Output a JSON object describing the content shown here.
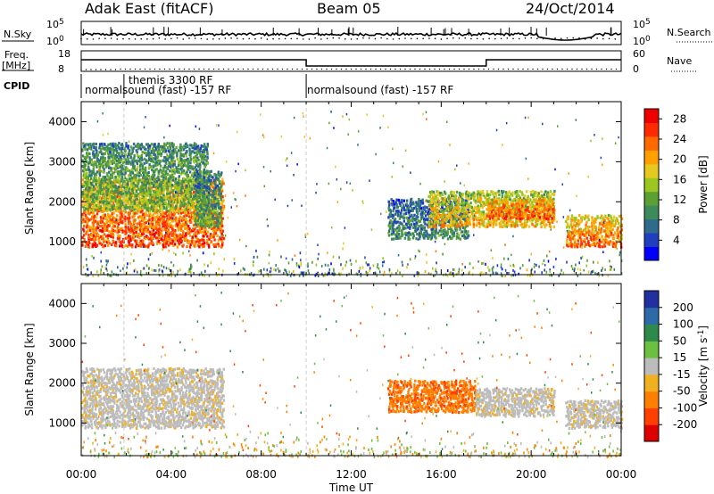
{
  "header": {
    "station": "Adak East (fitACF)",
    "beam": "Beam 05",
    "date": "24/Oct/2014"
  },
  "top_panels": {
    "nsky_label": "N.Sky",
    "nsearch_label": "N.Search",
    "nsky_ticks": [
      "10^5",
      "10^0"
    ],
    "nsearch_ticks": [
      "10^5",
      "10^0"
    ],
    "freq_label": "Freq.",
    "freq_unit": "[MHz]",
    "freq_ticks": [
      "18",
      "8"
    ],
    "nave_label": "Nave",
    "nave_ticks": [
      "60",
      "0"
    ],
    "cpid_label": "CPID",
    "cpid_segments": [
      {
        "label": "normalsound (fast) -157 RF"
      },
      {
        "label": "themis 3300 RF"
      },
      {
        "label": "normalsound (fast) -157 RF"
      }
    ]
  },
  "chart_data": [
    {
      "type": "heatmap",
      "title": "",
      "ylabel": "Slant Range [km]",
      "xlabel": "Time UT",
      "ylim": [
        180,
        4500
      ],
      "yticks": [
        "1000",
        "2000",
        "3000",
        "4000"
      ],
      "xticks": [
        "00:00",
        "04:00",
        "08:00",
        "12:00",
        "16:00",
        "20:00",
        "00:00"
      ],
      "colorbar": {
        "label": "Power [dB]",
        "ticks": [
          "28",
          "24",
          "20",
          "16",
          "12",
          "8",
          "4"
        ],
        "range": [
          0,
          30
        ],
        "colors": [
          "#0000ff",
          "#1f3fbf",
          "#2e6b8c",
          "#3d8a5a",
          "#5aa032",
          "#9cc620",
          "#e6c820",
          "#ffa000",
          "#ff6a00",
          "#ff2a00",
          "#ee0000"
        ]
      },
      "echo_regions": [
        {
          "t0": 0.0,
          "t1": 6.3,
          "r0": 900,
          "r1": 2600,
          "power_db": 26
        },
        {
          "t0": 0.0,
          "t1": 5.6,
          "r0": 1800,
          "r1": 3500,
          "power_db": 14
        },
        {
          "t0": 5.0,
          "t1": 6.2,
          "r0": 1400,
          "r1": 2800,
          "power_db": 12
        },
        {
          "t0": 13.6,
          "t1": 17.2,
          "r0": 1100,
          "r1": 2100,
          "power_db": 10
        },
        {
          "t0": 15.4,
          "t1": 21.0,
          "r0": 1400,
          "r1": 2300,
          "power_db": 20
        },
        {
          "t0": 18.0,
          "t1": 21.0,
          "r0": 1600,
          "r1": 2100,
          "power_db": 26
        },
        {
          "t0": 21.5,
          "t1": 24.0,
          "r0": 900,
          "r1": 1700,
          "power_db": 24
        }
      ]
    },
    {
      "type": "heatmap",
      "title": "",
      "ylabel": "Slant Range [km]",
      "xlabel": "Time UT",
      "ylim": [
        180,
        4500
      ],
      "yticks": [
        "1000",
        "2000",
        "3000",
        "4000"
      ],
      "xticks": [
        "00:00",
        "04:00",
        "08:00",
        "12:00",
        "16:00",
        "20:00",
        "00:00"
      ],
      "colorbar": {
        "label": "Velocity [m s^-1]",
        "ticks": [
          "200",
          "100",
          "50",
          "15",
          "-15",
          "-50",
          "-100",
          "-200"
        ],
        "colors": [
          "#2030a0",
          "#2c6aa8",
          "#2e8a4a",
          "#6cc040",
          "#bcbcbc",
          "#f0b020",
          "#ff8000",
          "#ff4000",
          "#dd0000"
        ]
      },
      "echo_regions": [
        {
          "t0": 0.0,
          "t1": 6.3,
          "r0": 900,
          "r1": 2400,
          "velocity_ms": 0
        },
        {
          "t0": 13.6,
          "t1": 17.5,
          "r0": 1300,
          "r1": 2100,
          "velocity_ms": -60
        },
        {
          "t0": 17.5,
          "t1": 21.0,
          "r0": 1200,
          "r1": 1900,
          "velocity_ms": 0
        },
        {
          "t0": 21.5,
          "t1": 24.0,
          "r0": 900,
          "r1": 1600,
          "velocity_ms": 0
        }
      ]
    }
  ]
}
